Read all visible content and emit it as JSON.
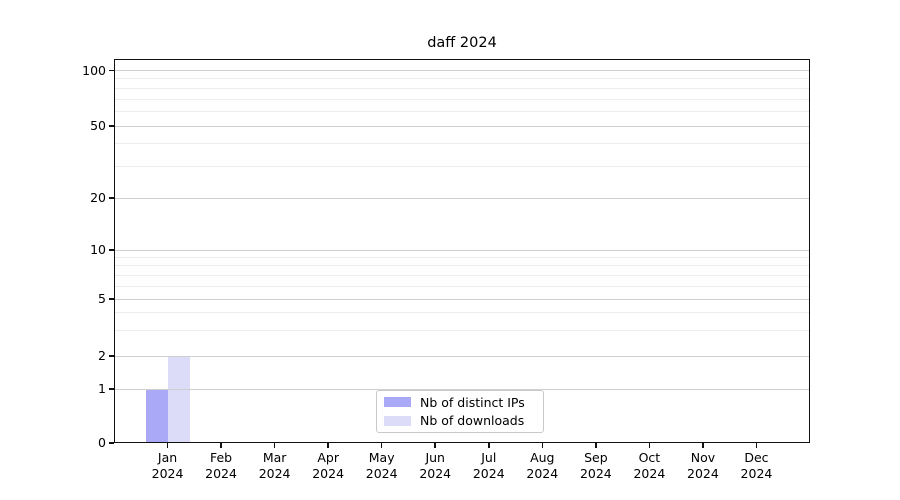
{
  "chart_data": {
    "type": "bar",
    "title": "daff 2024",
    "x_year": "2024",
    "categories": [
      "Jan",
      "Feb",
      "Mar",
      "Apr",
      "May",
      "Jun",
      "Jul",
      "Aug",
      "Sep",
      "Oct",
      "Nov",
      "Dec"
    ],
    "series": [
      {
        "name": "Nb of distinct IPs",
        "color": "#a9a9f7",
        "values": [
          1,
          0,
          0,
          0,
          0,
          0,
          0,
          0,
          0,
          0,
          0,
          0
        ]
      },
      {
        "name": "Nb of downloads",
        "color": "#dcdcf9",
        "values": [
          2,
          0,
          0,
          0,
          0,
          0,
          0,
          0,
          0,
          0,
          0,
          0
        ]
      }
    ],
    "y_axis": {
      "scale": "log (linear below 1)",
      "ticks": [
        0,
        1,
        2,
        5,
        10,
        20,
        50,
        100
      ],
      "tick_labels": [
        "0",
        "1",
        "2",
        "5",
        "10",
        "20",
        "50",
        "100"
      ],
      "minor_ticks": [
        3,
        4,
        6,
        7,
        8,
        9,
        30,
        40,
        60,
        70,
        80,
        90
      ],
      "range": [
        0,
        100
      ]
    },
    "grid": true,
    "legend_position": "lower center"
  }
}
